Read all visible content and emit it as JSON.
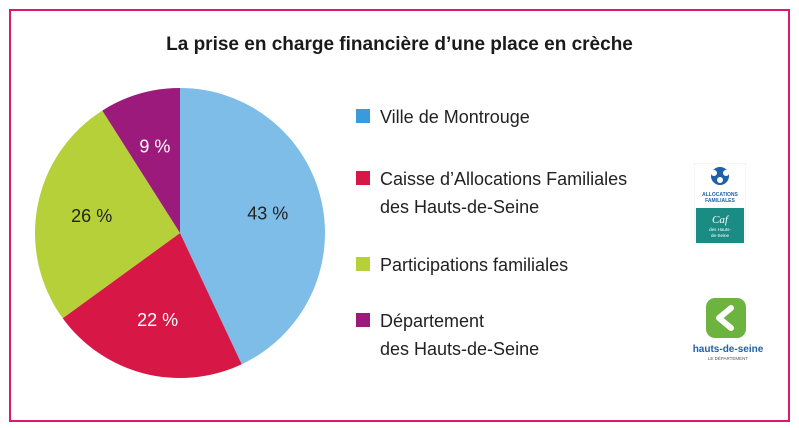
{
  "chart_data": {
    "type": "pie",
    "title": "La prise en charge financière d’une place en crèche",
    "slices": [
      {
        "label": "Ville de Montrouge",
        "value": 43,
        "display": "43 %",
        "color": "#7dbde8"
      },
      {
        "label": "Caisse d’Allocations Familiales\ndes Hauts-de-Seine",
        "value": 22,
        "display": "22 %",
        "color": "#d71846"
      },
      {
        "label": "Participations familiales",
        "value": 26,
        "display": "26 %",
        "color": "#b5d038"
      },
      {
        "label": "Département\ndes Hauts-de-Seine",
        "value": 9,
        "display": "9 %",
        "color": "#9b1a7b"
      }
    ],
    "legend_colors": [
      "#3a9bdc",
      "#d71846",
      "#b5d038",
      "#9b1a7b"
    ],
    "legend_position": "right",
    "start": "top",
    "direction": "clockwise"
  },
  "logos": {
    "caf": {
      "text_top": "ALLOCATIONS FAMILIALES",
      "text_mid": "Caf",
      "text_bottom": "des Hauts-de-Seine"
    },
    "hauts_de_seine": {
      "text_main": "hauts-de-seine",
      "text_sub": "LE DÉPARTEMENT"
    }
  },
  "colors": {
    "frame": "#d81b6e",
    "caf_teal": "#1a8c84",
    "hds_green": "#6cb33f"
  }
}
